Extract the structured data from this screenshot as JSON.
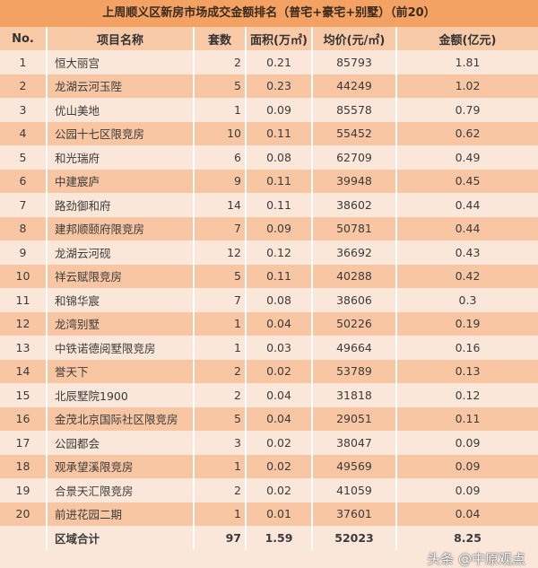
{
  "title": "上周顺义区新房市场成交金额排名（普宅+豪宅+别墅）（前20）",
  "headers": [
    "No.",
    "项目名称",
    "套数",
    "面积(万㎡)",
    "均价(元/㎡)",
    "金额(亿元)"
  ],
  "rows": [
    [
      "1",
      "恒大丽宫",
      "2",
      "0.21",
      "85793",
      "1.81"
    ],
    [
      "2",
      "龙湖云河玉陛",
      "5",
      "0.23",
      "44249",
      "1.02"
    ],
    [
      "3",
      "优山美地",
      "1",
      "0.09",
      "85578",
      "0.79"
    ],
    [
      "4",
      "公园十七区限竞房",
      "10",
      "0.11",
      "55452",
      "0.62"
    ],
    [
      "5",
      "和光瑞府",
      "6",
      "0.08",
      "62709",
      "0.49"
    ],
    [
      "6",
      "中建宸庐",
      "9",
      "0.11",
      "39948",
      "0.45"
    ],
    [
      "7",
      "路劲御和府",
      "14",
      "0.11",
      "38602",
      "0.44"
    ],
    [
      "8",
      "建邦顺颐府限竞房",
      "7",
      "0.09",
      "50781",
      "0.44"
    ],
    [
      "9",
      "龙湖云河砚",
      "12",
      "0.12",
      "36692",
      "0.43"
    ],
    [
      "10",
      "祥云赋限竞房",
      "5",
      "0.11",
      "40288",
      "0.42"
    ],
    [
      "11",
      "和锦华宸",
      "7",
      "0.08",
      "38606",
      "0.3"
    ],
    [
      "12",
      "龙湾别墅",
      "1",
      "0.04",
      "50226",
      "0.19"
    ],
    [
      "13",
      "中铁诺德阅墅限竞房",
      "1",
      "0.03",
      "49664",
      "0.16"
    ],
    [
      "14",
      "誉天下",
      "2",
      "0.02",
      "53789",
      "0.13"
    ],
    [
      "15",
      "北辰墅院1900",
      "2",
      "0.04",
      "31818",
      "0.12"
    ],
    [
      "16",
      "金茂北京国际社区限竞房",
      "5",
      "0.04",
      "29051",
      "0.11"
    ],
    [
      "17",
      "公园都会",
      "3",
      "0.02",
      "38047",
      "0.09"
    ],
    [
      "18",
      "观承望溪限竞房",
      "1",
      "0.02",
      "49569",
      "0.09"
    ],
    [
      "19",
      "合景天汇限竞房",
      "2",
      "0.02",
      "41059",
      "0.09"
    ],
    [
      "20",
      "前进花园二期",
      "1",
      "0.01",
      "37601",
      "0.04"
    ]
  ],
  "total": [
    "",
    "区域合计",
    "97",
    "1.59",
    "52023",
    "8.25"
  ],
  "watermark": "头条 @中原观点"
}
